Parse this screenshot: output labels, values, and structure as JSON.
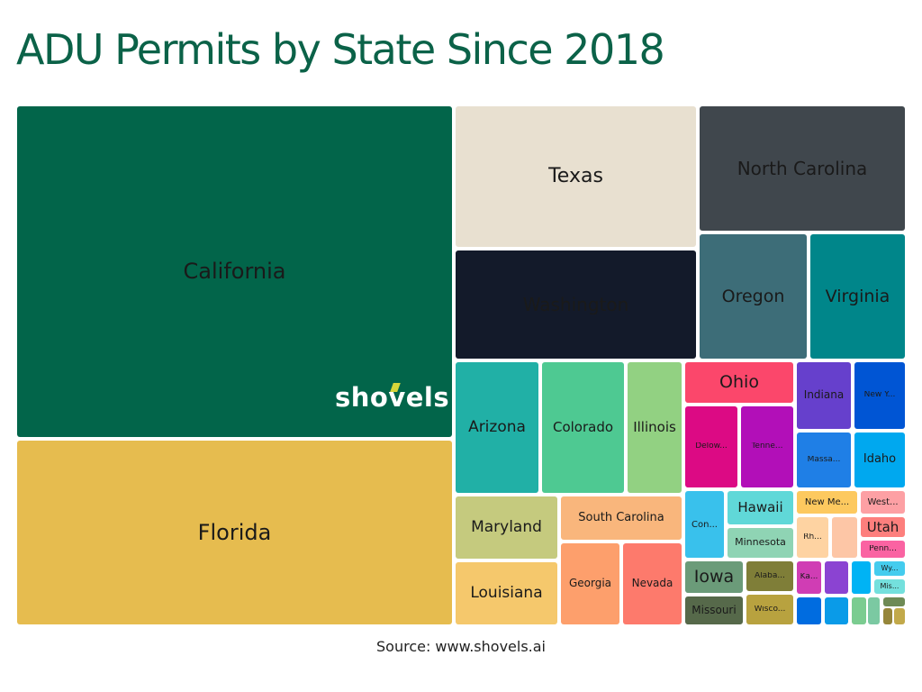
{
  "title": "ADU Permits by State Since 2018",
  "logo_text": "shovels",
  "source_text": "Source: www.shovels.ai",
  "colors": {
    "title": "#0b6248",
    "logo_accent": "#d7d63a"
  },
  "chart_data": {
    "type": "treemap",
    "title": "ADU Permits by State Since 2018",
    "tiles": [
      {
        "label": "California",
        "color": "#02654a",
        "text_color": "#1a1a1a",
        "size": 24
      },
      {
        "label": "Florida",
        "color": "#e6bc4f",
        "text_color": "#1a1a1a",
        "size": 24
      },
      {
        "label": "Texas",
        "color": "#e8e0d0",
        "text_color": "#1a1a1a",
        "size": 22
      },
      {
        "label": "Washington",
        "color": "#131a2a",
        "text_color": "#1a1a1a",
        "size": 20
      },
      {
        "label": "North Carolina",
        "color": "#40474d",
        "text_color": "#1a1a1a",
        "size": 20
      },
      {
        "label": "Oregon",
        "color": "#3d6d78",
        "text_color": "#1a1a1a",
        "size": 19
      },
      {
        "label": "Virginia",
        "color": "#00868a",
        "text_color": "#1a1a1a",
        "size": 19
      },
      {
        "label": "Arizona",
        "color": "#21b0a6",
        "text_color": "#1a1a1a",
        "size": 17
      },
      {
        "label": "Colorado",
        "color": "#4ec992",
        "text_color": "#1a1a1a",
        "size": 15
      },
      {
        "label": "Illinois",
        "color": "#92d182",
        "text_color": "#1a1a1a",
        "size": 15
      },
      {
        "label": "Ohio",
        "color": "#fb476b",
        "text_color": "#1a1a1a",
        "size": 19
      },
      {
        "label": "Indiana",
        "color": "#6640cc",
        "text_color": "#1a1a1a",
        "size": 12
      },
      {
        "label": "New Y...",
        "color": "#0055d4",
        "text_color": "#1a1a1a",
        "size": 9
      },
      {
        "label": "Delow...",
        "color": "#dc0a84",
        "text_color": "#1a1a1a",
        "size": 9
      },
      {
        "label": "Tenne...",
        "color": "#b20fb8",
        "text_color": "#1a1a1a",
        "size": 9
      },
      {
        "label": "Massa...",
        "color": "#1f7fe6",
        "text_color": "#1a1a1a",
        "size": 9
      },
      {
        "label": "Idaho",
        "color": "#00a8ef",
        "text_color": "#1a1a1a",
        "size": 13
      },
      {
        "label": "Maryland",
        "color": "#c5ca7e",
        "text_color": "#1a1a1a",
        "size": 17
      },
      {
        "label": "South Carolina",
        "color": "#f9b67c",
        "text_color": "#1a1a1a",
        "size": 13
      },
      {
        "label": "Con...",
        "color": "#39c1ec",
        "text_color": "#1a1a1a",
        "size": 10
      },
      {
        "label": "Hawaii",
        "color": "#60d8d8",
        "text_color": "#1a1a1a",
        "size": 15
      },
      {
        "label": "Minnesota",
        "color": "#8fd4b4",
        "text_color": "#1a1a1a",
        "size": 11
      },
      {
        "label": "New Me...",
        "color": "#fdc95f",
        "text_color": "#1a1a1a",
        "size": 10
      },
      {
        "label": "West...",
        "color": "#fda0a4",
        "text_color": "#1a1a1a",
        "size": 10
      },
      {
        "label": "Rh...",
        "color": "#fed3a2",
        "text_color": "#1a1a1a",
        "size": 9
      },
      {
        "label": "",
        "color": "#fdc6a6",
        "text_color": "#1a1a1a",
        "size": 9
      },
      {
        "label": "Utah",
        "color": "#fd7f7d",
        "text_color": "#1a1a1a",
        "size": 15
      },
      {
        "label": "Penn...",
        "color": "#fa63a2",
        "text_color": "#1a1a1a",
        "size": 9
      },
      {
        "label": "Louisiana",
        "color": "#f5c86c",
        "text_color": "#1a1a1a",
        "size": 17
      },
      {
        "label": "Georgia",
        "color": "#fd9f6c",
        "text_color": "#1a1a1a",
        "size": 12
      },
      {
        "label": "Nevada",
        "color": "#fd7a6c",
        "text_color": "#1a1a1a",
        "size": 12
      },
      {
        "label": "Iowa",
        "color": "#6b9b79",
        "text_color": "#1a1a1a",
        "size": 19
      },
      {
        "label": "Alaba...",
        "color": "#7f7e38",
        "text_color": "#1a1a1a",
        "size": 9
      },
      {
        "label": "Missouri",
        "color": "#56694a",
        "text_color": "#1a1a1a",
        "size": 12
      },
      {
        "label": "Wisco...",
        "color": "#b8a23f",
        "text_color": "#1a1a1a",
        "size": 9
      },
      {
        "label": "Ka...",
        "color": "#d03db4",
        "text_color": "#1a1a1a",
        "size": 9
      },
      {
        "label": "",
        "color": "#8b43d2",
        "text_color": "#1a1a1a",
        "size": 9
      },
      {
        "label": "",
        "color": "#00b3f4",
        "text_color": "#1a1a1a",
        "size": 9
      },
      {
        "label": "Wy...",
        "color": "#44ccee",
        "text_color": "#1a1a1a",
        "size": 8
      },
      {
        "label": "Mis...",
        "color": "#74e0dd",
        "text_color": "#1a1a1a",
        "size": 8
      },
      {
        "label": "",
        "color": "#006ce0",
        "text_color": "#1a1a1a",
        "size": 9
      },
      {
        "label": "",
        "color": "#0a9be8",
        "text_color": "#1a1a1a",
        "size": 9
      },
      {
        "label": "",
        "color": "#7bcc90",
        "text_color": "#1a1a1a",
        "size": 9
      },
      {
        "label": "",
        "color": "#7bc9a2",
        "text_color": "#1a1a1a",
        "size": 9
      },
      {
        "label": "",
        "color": "#6e8a55",
        "text_color": "#1a1a1a",
        "size": 9
      },
      {
        "label": "",
        "color": "#96863a",
        "text_color": "#1a1a1a",
        "size": 9
      },
      {
        "label": "",
        "color": "#c2a94a",
        "text_color": "#1a1a1a",
        "size": 9
      }
    ]
  }
}
